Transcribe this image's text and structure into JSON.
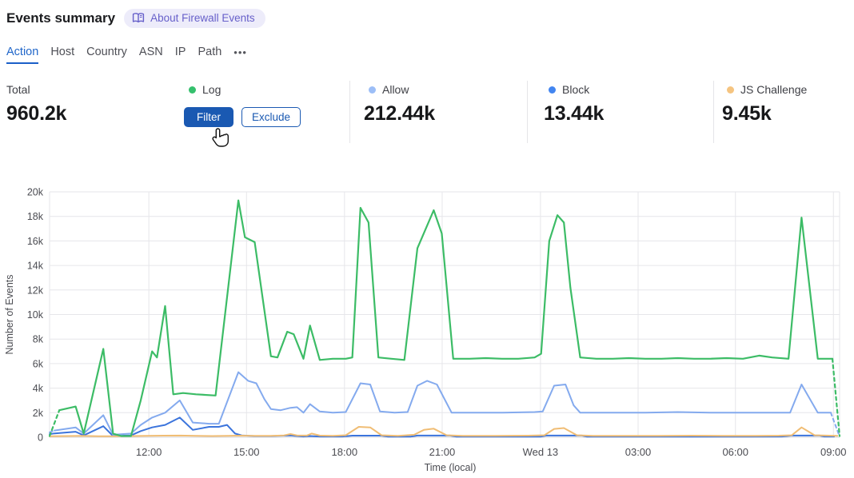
{
  "header": {
    "title": "Events summary",
    "about_badge": "About Firewall Events"
  },
  "tabs": {
    "items": [
      {
        "label": "Action",
        "active": true
      },
      {
        "label": "Host",
        "active": false
      },
      {
        "label": "Country",
        "active": false
      },
      {
        "label": "ASN",
        "active": false
      },
      {
        "label": "IP",
        "active": false
      },
      {
        "label": "Path",
        "active": false
      }
    ],
    "more_label": "•••"
  },
  "stats": {
    "total": {
      "label": "Total",
      "value": "960.2k"
    },
    "cards": [
      {
        "label": "Log",
        "dot_color": "#35c06d",
        "hovered": true,
        "filter_label": "Filter",
        "exclude_label": "Exclude"
      },
      {
        "label": "Allow",
        "dot_color": "#9cbef7",
        "value": "212.44k"
      },
      {
        "label": "Block",
        "dot_color": "#4285f0",
        "value": "13.44k"
      },
      {
        "label": "JS Challenge",
        "dot_color": "#f5c480",
        "value": "9.45k"
      }
    ]
  },
  "colors": {
    "accent_blue": "#1a59b2",
    "active_tab_blue": "#2066c9",
    "badge_purple": "#6760ca",
    "grid": "#e6e6ea"
  },
  "chart_data": {
    "type": "line",
    "title": "",
    "xlabel": "Time (local)",
    "ylabel": "Number of Events",
    "ylim": [
      0,
      20000
    ],
    "y_step": 2000,
    "y_ticks": [
      "0",
      "2k",
      "4k",
      "6k",
      "8k",
      "10k",
      "12k",
      "14k",
      "16k",
      "18k",
      "20k"
    ],
    "x_ticks": [
      {
        "h": 3.05,
        "label": "12:00"
      },
      {
        "h": 6.05,
        "label": "15:00"
      },
      {
        "h": 9.06,
        "label": "18:00"
      },
      {
        "h": 12.06,
        "label": "21:00"
      },
      {
        "h": 15.08,
        "label": "Wed 13"
      },
      {
        "h": 18.08,
        "label": "03:00"
      },
      {
        "h": 21.07,
        "label": "06:00"
      },
      {
        "h": 24.08,
        "label": "09:00"
      }
    ],
    "x_note": "h = hours since chart start (~09:00 Tue), 15-min event buckets",
    "series": [
      {
        "name": "Log",
        "color": "#3cbc66",
        "width": 2.2,
        "dash_head_until": 0.3,
        "dash_tail_from": 24.05,
        "points": [
          [
            0,
            100
          ],
          [
            0.3,
            2200
          ],
          [
            0.8,
            2500
          ],
          [
            1.05,
            300
          ],
          [
            1.65,
            7200
          ],
          [
            1.95,
            300
          ],
          [
            2.2,
            100
          ],
          [
            2.5,
            100
          ],
          [
            2.8,
            3000
          ],
          [
            3.15,
            7000
          ],
          [
            3.3,
            6500
          ],
          [
            3.55,
            10700
          ],
          [
            3.8,
            3500
          ],
          [
            4.1,
            3600
          ],
          [
            4.5,
            3500
          ],
          [
            5.1,
            3400
          ],
          [
            5.8,
            19300
          ],
          [
            6.0,
            16300
          ],
          [
            6.15,
            16100
          ],
          [
            6.3,
            15900
          ],
          [
            6.8,
            6600
          ],
          [
            7.0,
            6500
          ],
          [
            7.3,
            8600
          ],
          [
            7.5,
            8400
          ],
          [
            7.8,
            6400
          ],
          [
            8.0,
            9100
          ],
          [
            8.3,
            6300
          ],
          [
            8.7,
            6400
          ],
          [
            9.1,
            6400
          ],
          [
            9.3,
            6500
          ],
          [
            9.55,
            18700
          ],
          [
            9.8,
            17500
          ],
          [
            10.1,
            6500
          ],
          [
            10.5,
            6400
          ],
          [
            10.9,
            6300
          ],
          [
            11.3,
            15400
          ],
          [
            11.8,
            18500
          ],
          [
            12.05,
            16600
          ],
          [
            12.4,
            6400
          ],
          [
            12.9,
            6400
          ],
          [
            13.4,
            6450
          ],
          [
            13.9,
            6400
          ],
          [
            14.4,
            6400
          ],
          [
            14.9,
            6500
          ],
          [
            15.1,
            6800
          ],
          [
            15.35,
            16000
          ],
          [
            15.6,
            18100
          ],
          [
            15.8,
            17500
          ],
          [
            16.0,
            12200
          ],
          [
            16.3,
            6500
          ],
          [
            16.8,
            6400
          ],
          [
            17.3,
            6400
          ],
          [
            17.8,
            6450
          ],
          [
            18.3,
            6400
          ],
          [
            18.8,
            6400
          ],
          [
            19.3,
            6450
          ],
          [
            19.8,
            6400
          ],
          [
            20.3,
            6400
          ],
          [
            20.8,
            6450
          ],
          [
            21.3,
            6400
          ],
          [
            21.8,
            6650
          ],
          [
            22.2,
            6500
          ],
          [
            22.7,
            6400
          ],
          [
            23.1,
            17900
          ],
          [
            23.6,
            6400
          ],
          [
            24.05,
            6400
          ],
          [
            24.27,
            100
          ]
        ]
      },
      {
        "name": "Allow",
        "color": "#84aaee",
        "width": 2,
        "dash_head_until": 0.15,
        "dash_tail_from": 24.0,
        "points": [
          [
            0,
            400
          ],
          [
            0.15,
            550
          ],
          [
            0.8,
            800
          ],
          [
            1.05,
            300
          ],
          [
            1.65,
            1800
          ],
          [
            1.95,
            200
          ],
          [
            2.5,
            300
          ],
          [
            2.8,
            1000
          ],
          [
            3.15,
            1600
          ],
          [
            3.55,
            2000
          ],
          [
            4.0,
            3000
          ],
          [
            4.4,
            1200
          ],
          [
            4.9,
            1100
          ],
          [
            5.2,
            1100
          ],
          [
            5.8,
            5300
          ],
          [
            6.1,
            4600
          ],
          [
            6.35,
            4400
          ],
          [
            6.6,
            3100
          ],
          [
            6.8,
            2300
          ],
          [
            7.1,
            2200
          ],
          [
            7.4,
            2400
          ],
          [
            7.6,
            2450
          ],
          [
            7.8,
            2000
          ],
          [
            8.0,
            2700
          ],
          [
            8.3,
            2100
          ],
          [
            8.7,
            2000
          ],
          [
            9.1,
            2050
          ],
          [
            9.55,
            4400
          ],
          [
            9.85,
            4300
          ],
          [
            10.15,
            2100
          ],
          [
            10.6,
            2000
          ],
          [
            11.0,
            2050
          ],
          [
            11.3,
            4200
          ],
          [
            11.6,
            4600
          ],
          [
            11.9,
            4300
          ],
          [
            12.35,
            2000
          ],
          [
            12.9,
            2000
          ],
          [
            13.9,
            2000
          ],
          [
            14.9,
            2050
          ],
          [
            15.15,
            2100
          ],
          [
            15.5,
            4200
          ],
          [
            15.85,
            4300
          ],
          [
            16.1,
            2600
          ],
          [
            16.3,
            2000
          ],
          [
            17.3,
            2000
          ],
          [
            18.3,
            2000
          ],
          [
            19.3,
            2050
          ],
          [
            20.3,
            2000
          ],
          [
            21.3,
            2000
          ],
          [
            22.3,
            2000
          ],
          [
            22.75,
            2000
          ],
          [
            23.1,
            4300
          ],
          [
            23.6,
            2000
          ],
          [
            24.0,
            2000
          ],
          [
            24.27,
            50
          ]
        ]
      },
      {
        "name": "Block",
        "color": "#3b74dc",
        "width": 2,
        "dash_head_until": 0.12,
        "points": [
          [
            0,
            250
          ],
          [
            0.12,
            300
          ],
          [
            0.8,
            450
          ],
          [
            1.05,
            150
          ],
          [
            1.65,
            900
          ],
          [
            1.95,
            100
          ],
          [
            2.5,
            150
          ],
          [
            2.8,
            500
          ],
          [
            3.15,
            800
          ],
          [
            3.55,
            1000
          ],
          [
            4.0,
            1600
          ],
          [
            4.4,
            600
          ],
          [
            4.9,
            850
          ],
          [
            5.2,
            850
          ],
          [
            5.45,
            1000
          ],
          [
            5.7,
            300
          ],
          [
            5.9,
            150
          ],
          [
            6.3,
            100
          ],
          [
            6.8,
            100
          ],
          [
            7.4,
            150
          ],
          [
            7.8,
            60
          ],
          [
            8.0,
            100
          ],
          [
            8.3,
            60
          ],
          [
            9.0,
            60
          ],
          [
            9.3,
            130
          ],
          [
            10.2,
            130
          ],
          [
            10.4,
            50
          ],
          [
            11.1,
            50
          ],
          [
            11.3,
            140
          ],
          [
            12.3,
            140
          ],
          [
            12.5,
            50
          ],
          [
            13.5,
            50
          ],
          [
            14.5,
            50
          ],
          [
            15.1,
            50
          ],
          [
            15.25,
            140
          ],
          [
            16.35,
            140
          ],
          [
            16.5,
            50
          ],
          [
            17.5,
            50
          ],
          [
            18.5,
            50
          ],
          [
            19.5,
            50
          ],
          [
            20.5,
            50
          ],
          [
            21.5,
            50
          ],
          [
            22.5,
            60
          ],
          [
            22.8,
            140
          ],
          [
            23.65,
            140
          ],
          [
            23.8,
            60
          ],
          [
            24.1,
            60
          ]
        ]
      },
      {
        "name": "JS Challenge",
        "color": "#f0bd74",
        "width": 2,
        "points": [
          [
            0,
            80
          ],
          [
            0.5,
            100
          ],
          [
            1.0,
            120
          ],
          [
            1.5,
            80
          ],
          [
            2.0,
            80
          ],
          [
            2.5,
            100
          ],
          [
            3.0,
            110
          ],
          [
            3.5,
            130
          ],
          [
            4.0,
            140
          ],
          [
            4.5,
            110
          ],
          [
            5.0,
            100
          ],
          [
            5.5,
            120
          ],
          [
            5.8,
            130
          ],
          [
            6.3,
            110
          ],
          [
            6.8,
            120
          ],
          [
            7.2,
            150
          ],
          [
            7.4,
            260
          ],
          [
            7.6,
            150
          ],
          [
            7.9,
            140
          ],
          [
            8.05,
            300
          ],
          [
            8.3,
            140
          ],
          [
            8.7,
            120
          ],
          [
            9.1,
            160
          ],
          [
            9.5,
            850
          ],
          [
            9.85,
            800
          ],
          [
            10.2,
            160
          ],
          [
            10.7,
            120
          ],
          [
            11.2,
            200
          ],
          [
            11.5,
            600
          ],
          [
            11.8,
            700
          ],
          [
            12.2,
            160
          ],
          [
            12.7,
            120
          ],
          [
            13.7,
            120
          ],
          [
            14.7,
            130
          ],
          [
            15.2,
            160
          ],
          [
            15.5,
            680
          ],
          [
            15.8,
            750
          ],
          [
            16.2,
            160
          ],
          [
            16.7,
            120
          ],
          [
            17.7,
            120
          ],
          [
            18.7,
            120
          ],
          [
            19.7,
            130
          ],
          [
            20.7,
            120
          ],
          [
            21.7,
            120
          ],
          [
            22.4,
            130
          ],
          [
            22.8,
            160
          ],
          [
            23.1,
            800
          ],
          [
            23.5,
            160
          ],
          [
            24.2,
            120
          ]
        ]
      }
    ],
    "legend_position": "top (stat cards)",
    "grid": true
  }
}
